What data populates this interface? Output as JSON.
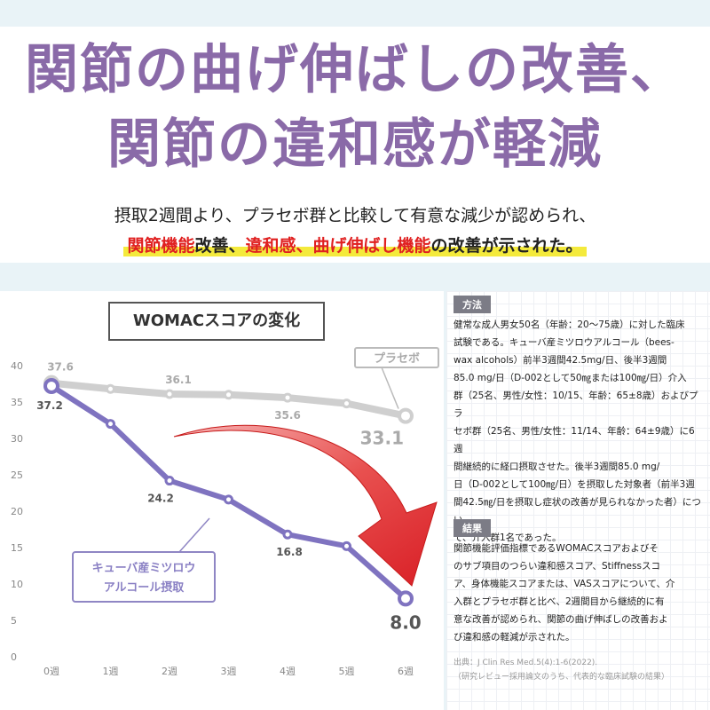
{
  "header": {
    "title_line1": "関節の曲げ伸ばしの改善、",
    "title_line2": "関節の違和感が軽減",
    "sub_line1": "摂取2週間より、プラセボ群と比較して有意な減少が認められ、",
    "sub_line2_red": "関節機能",
    "sub_line2_a": "改善、",
    "sub_line2_red2": "違和感、曲げ伸ばし機能",
    "sub_line2_b": "の改善が示された。"
  },
  "chart_data": {
    "type": "line",
    "title": "WOMACスコアの変化",
    "categories": [
      "0週",
      "1週",
      "2週",
      "3週",
      "4週",
      "5週",
      "6週"
    ],
    "ylim": [
      0,
      40
    ],
    "yticks": [
      0,
      5,
      10,
      15,
      20,
      25,
      30,
      35,
      40
    ],
    "series": [
      {
        "name": "プラセボ",
        "color": "#cfcfcf",
        "values": [
          37.6,
          36.8,
          36.1,
          36.0,
          35.6,
          34.8,
          33.1
        ],
        "labels": {
          "0": "37.6",
          "2": "36.1",
          "4": "35.6",
          "6": "33.1"
        }
      },
      {
        "name": "キューバ産ミツロウアルコール摂取",
        "color": "#7f73c0",
        "values": [
          37.2,
          32.0,
          24.2,
          21.6,
          16.8,
          15.2,
          8.0
        ],
        "labels": {
          "0": "37.2",
          "2": "24.2",
          "4": "16.8",
          "6": "8.0"
        }
      }
    ],
    "legend_placebo": "プラセボ",
    "legend_treat_line1": "キューバ産ミツロウ",
    "legend_treat_line2": "アルコール摂取"
  },
  "methods": {
    "heading": "方法",
    "lines": [
      "健常な成人男女50名（年齢：20～75歳）に対した臨床",
      "試験である。キューバ産ミツロウアルコール（bees-",
      "wax alcohols）前半3週間42.5mg/日、後半3週間",
      "85.0 mg/日（D-002として50㎎または100㎎/日）介入",
      "群（25名、男性/女性：10/15、年齢：65±8歳）およびプラ",
      "セボ群（25名、男性/女性：11/14、年齢：64±9歳）に6週",
      "間継続的に経口摂取させた。後半3週間85.0 mg/",
      "日（D-002として100㎎/日）を摂取した対象者（前半3週",
      "間42.5㎎/日を摂取し症状の改善が見られなかった者）につい",
      "て、介入群1名であった。"
    ]
  },
  "results": {
    "heading": "結果",
    "lines": [
      "関節機能評価指標であるWOMACスコアおよびそ",
      "のサブ項目のつらい違和感スコア、Stiffnessスコ",
      "ア、身体機能スコアまたは、VASスコアについて、介",
      "入群とプラセボ群と比べ、2週間目から継続的に有",
      "意な改善が認められ、関節の曲げ伸ばしの改善およ",
      "び違和感の軽減が示された。"
    ]
  },
  "citation": {
    "line1": "出典：J Clin Res Med.5(4):1-6(2022).",
    "line2": "（研究レビュー採用論文のうち、代表的な臨床試験の結果）"
  }
}
